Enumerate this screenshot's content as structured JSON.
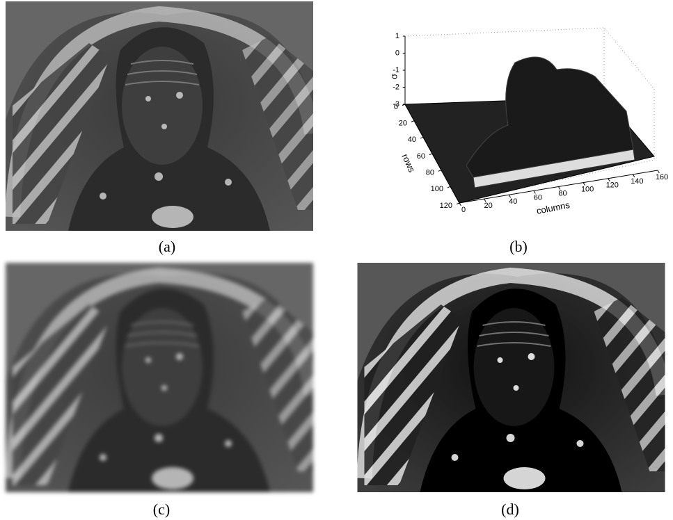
{
  "panels": [
    {
      "caption": "(a)"
    },
    {
      "caption": "(b)",
      "plot": {
        "zlabel": "σ",
        "ylabel": "rows",
        "xlabel": "columns",
        "zticks": [
          1,
          0,
          -1,
          -2,
          -3
        ],
        "rowticks": [
          0,
          20,
          40,
          60,
          80,
          100,
          120
        ],
        "columnticks": [
          0,
          20,
          40,
          60,
          80,
          100,
          120,
          140,
          160
        ]
      }
    },
    {
      "caption": "(c)"
    },
    {
      "caption": "(d)"
    }
  ]
}
